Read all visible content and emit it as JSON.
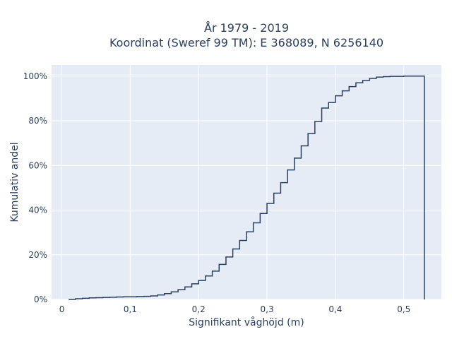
{
  "chart_data": {
    "type": "line",
    "line_shape": "step",
    "title": [
      "År 1979 - 2019",
      "Koordinat (Sweref 99 TM): E 368089, N 6256140"
    ],
    "xlabel": "Signifikant våghöjd (m)",
    "ylabel": "Kumulativ andel",
    "xlim": [
      -0.015,
      0.555
    ],
    "ylim": [
      0,
      1.05
    ],
    "x_ticks": [
      0,
      0.1,
      0.2,
      0.3,
      0.4,
      0.5
    ],
    "x_tick_labels": [
      "0",
      "0,1",
      "0,2",
      "0,3",
      "0,4",
      "0,5"
    ],
    "y_ticks": [
      0,
      0.2,
      0.4,
      0.6,
      0.8,
      1.0
    ],
    "y_tick_labels": [
      "0%",
      "20%",
      "40%",
      "60%",
      "80%",
      "100%"
    ],
    "grid": true,
    "series": [
      {
        "color": "#2a3f5f",
        "x": [
          0.01,
          0.02,
          0.03,
          0.04,
          0.05,
          0.06,
          0.07,
          0.08,
          0.09,
          0.1,
          0.11,
          0.12,
          0.13,
          0.14,
          0.15,
          0.16,
          0.17,
          0.18,
          0.19,
          0.2,
          0.21,
          0.22,
          0.23,
          0.24,
          0.25,
          0.26,
          0.27,
          0.28,
          0.29,
          0.3,
          0.31,
          0.32,
          0.33,
          0.34,
          0.35,
          0.36,
          0.37,
          0.38,
          0.39,
          0.4,
          0.41,
          0.42,
          0.43,
          0.44,
          0.45,
          0.46,
          0.47,
          0.48,
          0.49,
          0.5,
          0.51,
          0.52,
          0.53
        ],
        "y": [
          0.0,
          0.003,
          0.005,
          0.007,
          0.008,
          0.009,
          0.01,
          0.011,
          0.012,
          0.012,
          0.013,
          0.014,
          0.016,
          0.02,
          0.026,
          0.034,
          0.044,
          0.056,
          0.07,
          0.085,
          0.105,
          0.127,
          0.157,
          0.19,
          0.226,
          0.264,
          0.303,
          0.343,
          0.385,
          0.43,
          0.476,
          0.523,
          0.58,
          0.633,
          0.688,
          0.743,
          0.797,
          0.857,
          0.882,
          0.912,
          0.934,
          0.953,
          0.97,
          0.981,
          0.99,
          0.996,
          0.998,
          0.999,
          0.999,
          1.0,
          1.0,
          1.0,
          0.0
        ]
      }
    ]
  }
}
